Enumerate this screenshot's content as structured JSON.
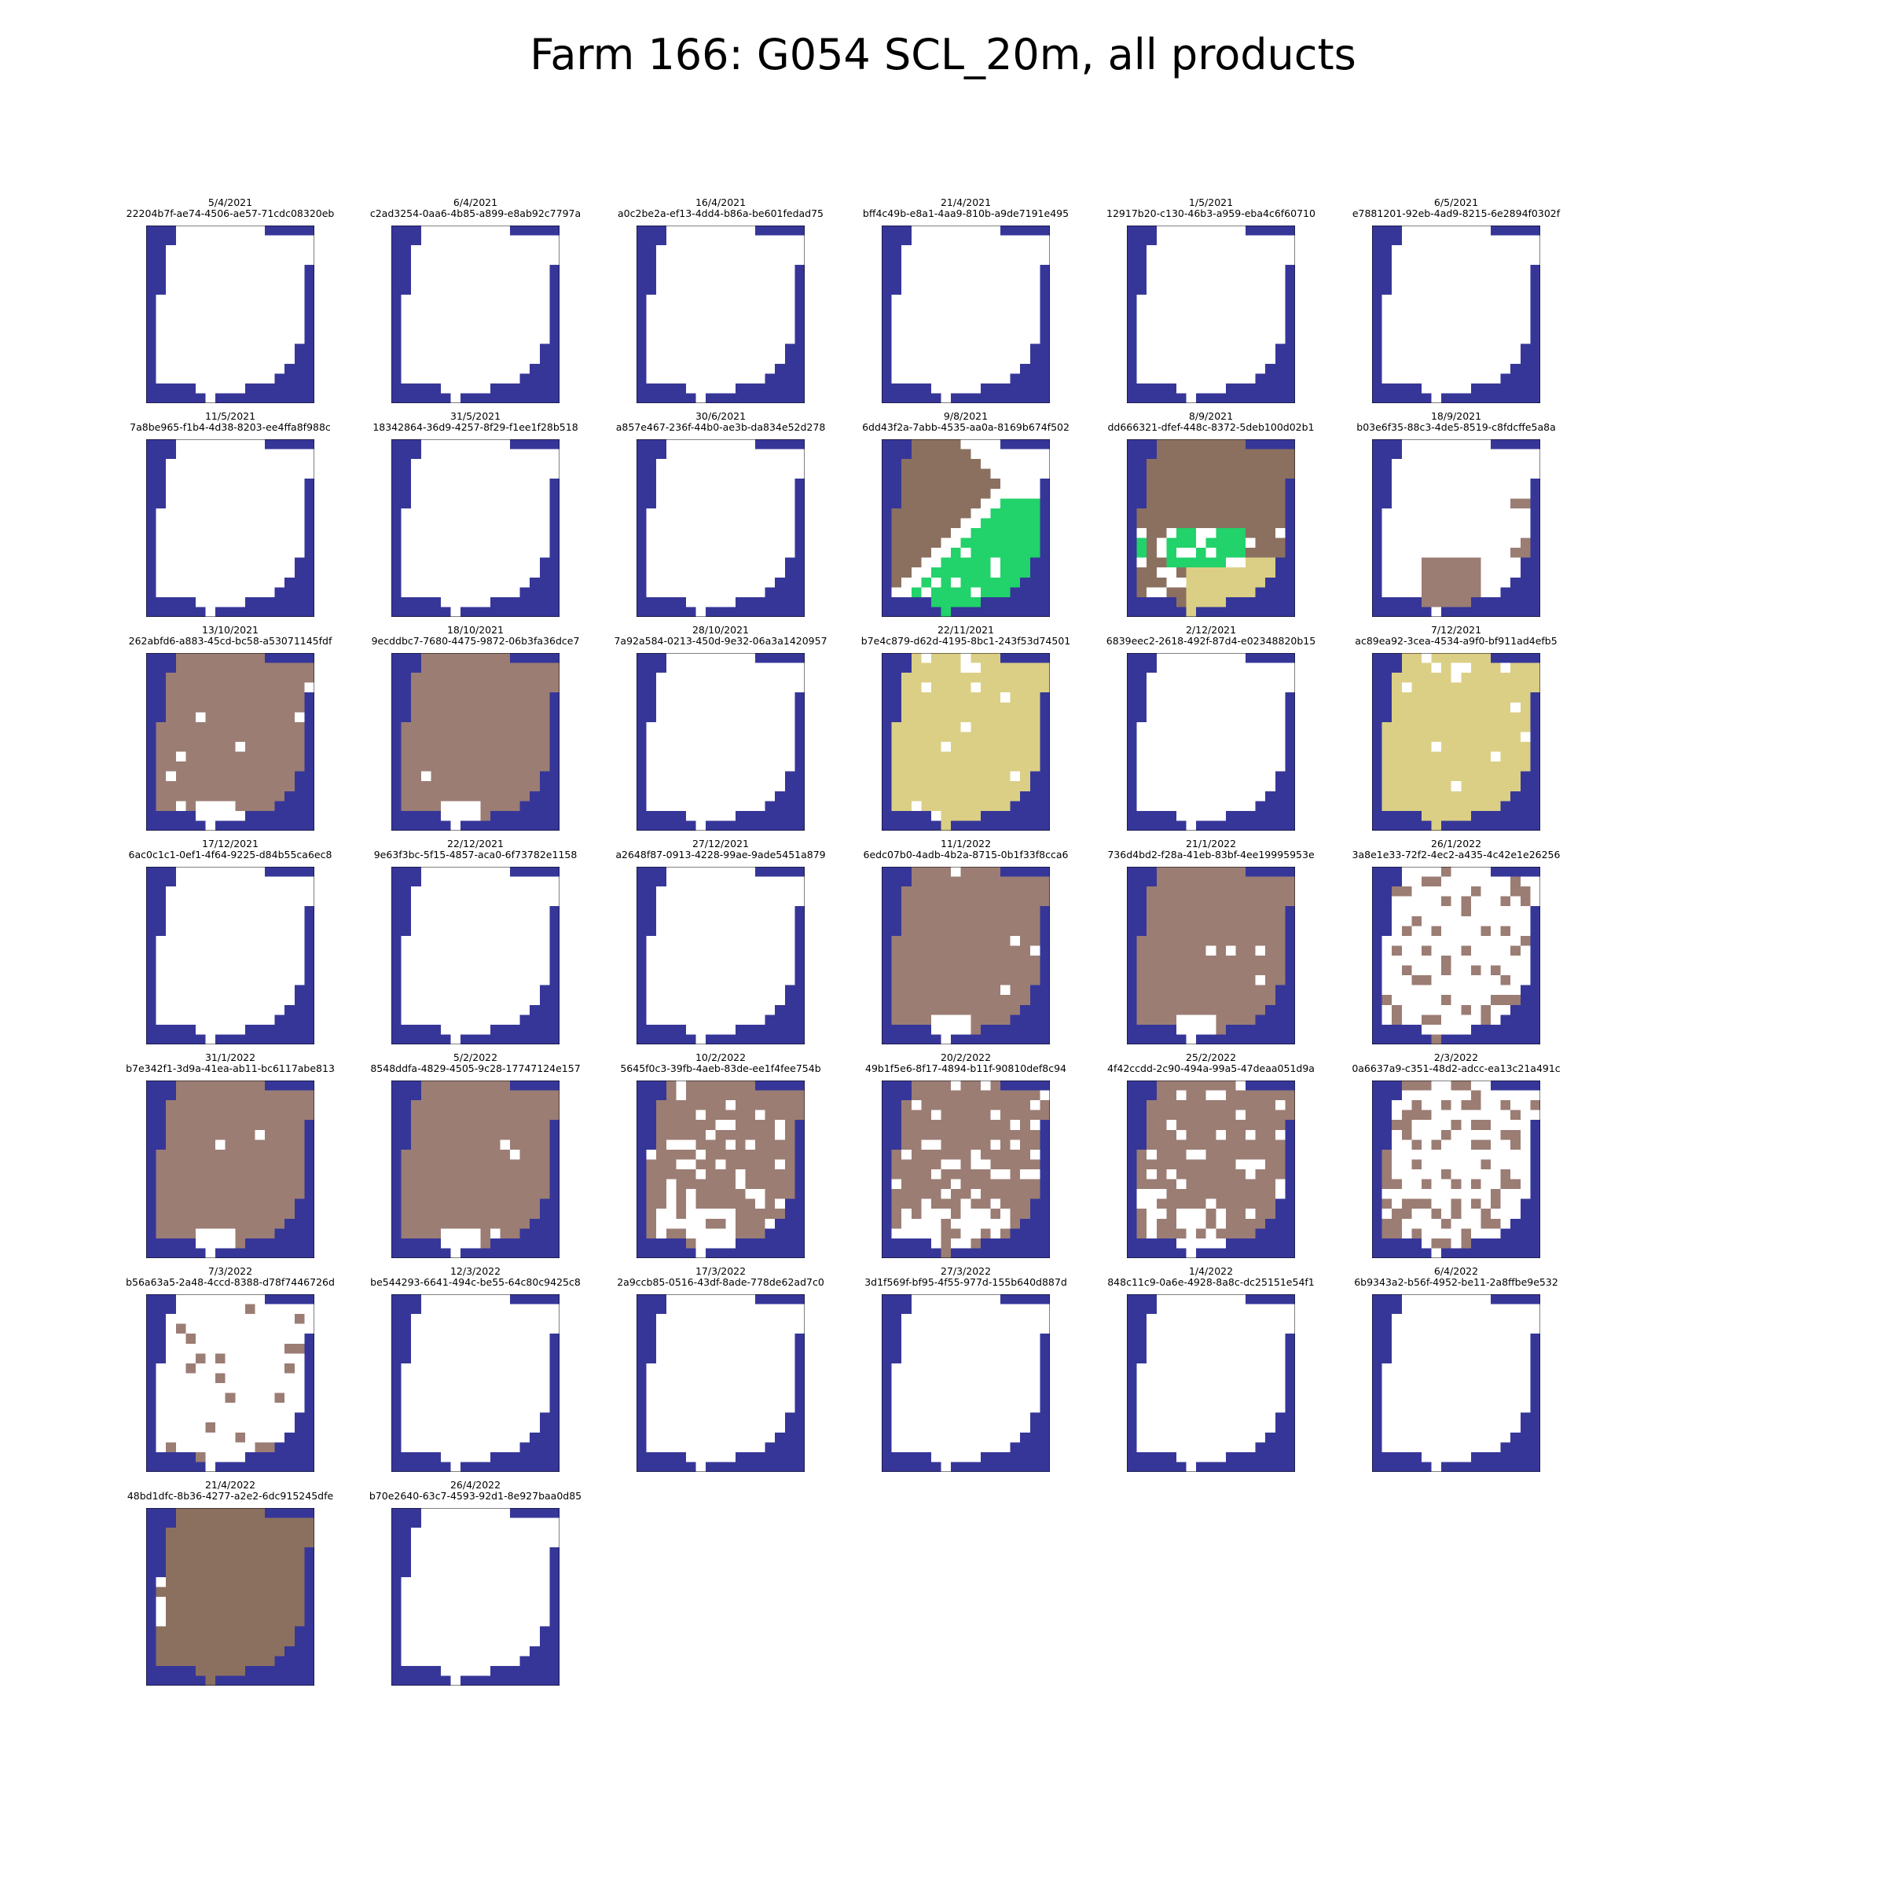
{
  "title": "Farm 166: G054 SCL_20m, all products",
  "colors": {
    "no_data_outside": "#363699",
    "clear": "#ffffff",
    "brown": "#8b7060",
    "mauve": "#9b7d74",
    "green": "#22d26a",
    "khaki": "#dbcf86"
  },
  "chart_data": {
    "type": "heatmap",
    "grid": {
      "rows": 18,
      "cols": 17
    },
    "legend": "none",
    "tick_labels": "none",
    "panels": [
      {
        "date": "5/4/2021",
        "id": "22204b7f-ae74-4506-ae57-71cdc08320eb",
        "state": "clear"
      },
      {
        "date": "6/4/2021",
        "id": "c2ad3254-0aa6-4b85-a899-e8ab92c7797a",
        "state": "clear"
      },
      {
        "date": "16/4/2021",
        "id": "a0c2be2a-ef13-4dd4-b86a-be601fedad75",
        "state": "clear"
      },
      {
        "date": "21/4/2021",
        "id": "bff4c49b-e8a1-4aa9-810b-a9de7191e495",
        "state": "clear"
      },
      {
        "date": "1/5/2021",
        "id": "12917b20-c130-46b3-a959-eba4c6f60710",
        "state": "clear"
      },
      {
        "date": "6/5/2021",
        "id": "e7881201-92eb-4ad9-8215-6e2894f0302f",
        "state": "clear"
      },
      {
        "date": "11/5/2021",
        "id": "7a8be965-f1b4-4d38-8203-ee4ffa8f988c",
        "state": "clear"
      },
      {
        "date": "31/5/2021",
        "id": "18342864-36d9-4257-8f29-f1ee1f28b518",
        "state": "clear"
      },
      {
        "date": "30/6/2021",
        "id": "a857e467-236f-44b0-ae3b-da834e52d278",
        "state": "clear"
      },
      {
        "date": "9/8/2021",
        "id": "6dd43f2a-7abb-4535-aa0a-8169b674f502",
        "state": "aug9"
      },
      {
        "date": "8/9/2021",
        "id": "dd666321-dfef-448c-8372-5deb100d02b1",
        "state": "sep8"
      },
      {
        "date": "18/9/2021",
        "id": "b03e6f35-88c3-4de5-8519-c8fdcffe5a8a",
        "state": "sep18"
      },
      {
        "date": "13/10/2021",
        "id": "262abfd6-a883-45cd-bc58-a53071145fdf",
        "state": "mauve_full"
      },
      {
        "date": "18/10/2021",
        "id": "9ecddbc7-7680-4475-9872-06b3fa36dce7",
        "state": "mauve_full"
      },
      {
        "date": "28/10/2021",
        "id": "7a92a584-0213-450d-9e32-06a3a1420957",
        "state": "clear"
      },
      {
        "date": "22/11/2021",
        "id": "b7e4c879-d62d-4195-8bc1-243f53d74501",
        "state": "khaki_full"
      },
      {
        "date": "2/12/2021",
        "id": "6839eec2-2618-492f-87d4-e02348820b15",
        "state": "clear"
      },
      {
        "date": "7/12/2021",
        "id": "ac89ea92-3cea-4534-a9f0-bf911ad4efb5",
        "state": "khaki_full"
      },
      {
        "date": "17/12/2021",
        "id": "6ac0c1c1-0ef1-4f64-9225-d84b55ca6ec8",
        "state": "clear"
      },
      {
        "date": "22/12/2021",
        "id": "9e63f3bc-5f15-4857-aca0-6f73782e1158",
        "state": "clear"
      },
      {
        "date": "27/12/2021",
        "id": "a2648f87-0913-4228-99ae-9ade5451a879",
        "state": "clear"
      },
      {
        "date": "11/1/2022",
        "id": "6edc07b0-4adb-4b2a-8715-0b1f33f8cca6",
        "state": "mauve_full"
      },
      {
        "date": "21/1/2022",
        "id": "736d4bd2-f28a-41eb-83bf-4ee19995953e",
        "state": "mauve_full"
      },
      {
        "date": "26/1/2022",
        "id": "3a8e1e33-72f2-4ec2-a435-4c42e1e26256",
        "state": "mauve_sparse"
      },
      {
        "date": "31/1/2022",
        "id": "b7e342f1-3d9a-41ea-ab11-bc6117abe813",
        "state": "mauve_full"
      },
      {
        "date": "5/2/2022",
        "id": "8548ddfa-4829-4505-9c28-17747124e157",
        "state": "mauve_full"
      },
      {
        "date": "10/2/2022",
        "id": "5645f0c3-39fb-4aeb-83de-ee1f4fee754b",
        "state": "mauve_mostly"
      },
      {
        "date": "20/2/2022",
        "id": "49b1f5e6-8f17-4894-b11f-90810def8c94",
        "state": "mauve_mostly"
      },
      {
        "date": "25/2/2022",
        "id": "4f42ccdd-2c90-494a-99a5-47deaa051d9a",
        "state": "mauve_mostly"
      },
      {
        "date": "2/3/2022",
        "id": "0a6637a9-c351-48d2-adcc-ea13c21a491c",
        "state": "mauve_sparse"
      },
      {
        "date": "7/3/2022",
        "id": "b56a63a5-2a48-4ccd-8388-d78f7446726d",
        "state": "mauve_few"
      },
      {
        "date": "12/3/2022",
        "id": "be544293-6641-494c-be55-64c80c9425c8",
        "state": "clear"
      },
      {
        "date": "17/3/2022",
        "id": "2a9ccb85-0516-43df-8ade-778de62ad7c0",
        "state": "clear"
      },
      {
        "date": "27/3/2022",
        "id": "3d1f569f-bf95-4f55-977d-155b640d887d",
        "state": "clear"
      },
      {
        "date": "1/4/2022",
        "id": "848c11c9-0a6e-4928-8a8c-dc25151e54f1",
        "state": "clear"
      },
      {
        "date": "6/4/2022",
        "id": "6b9343a2-b56f-4952-be11-2a8ffbe9e532",
        "state": "clear"
      },
      {
        "date": "21/4/2022",
        "id": "48bd1dfc-8b36-4277-a2e2-6dc915245dfe",
        "state": "brown_full"
      },
      {
        "date": "26/4/2022",
        "id": "b70e2640-63c7-4593-92d1-8e927baa0d85",
        "state": "clear"
      }
    ]
  }
}
